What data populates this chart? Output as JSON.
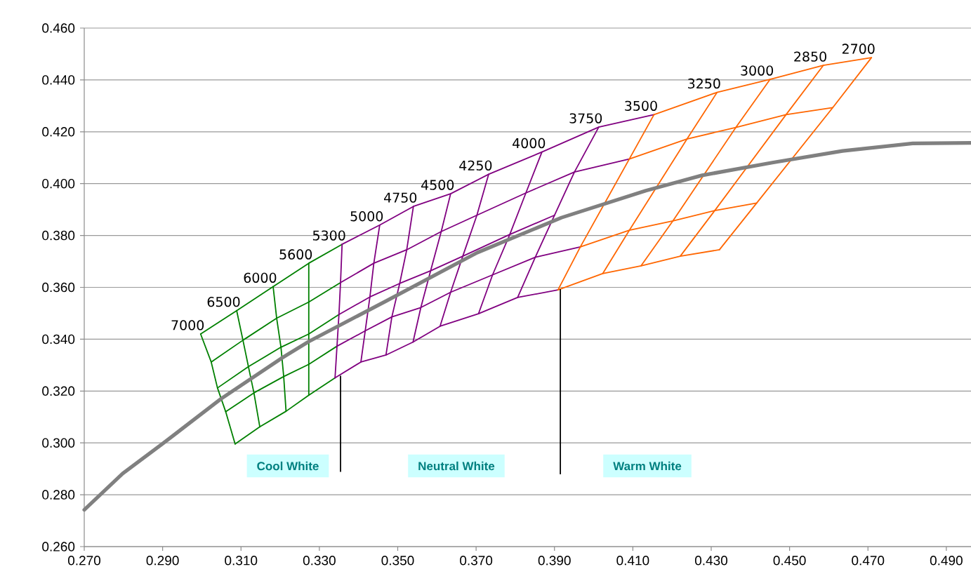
{
  "chart_data": {
    "type": "line",
    "xlim": [
      0.27,
      0.4963
    ],
    "ylim": [
      0.26,
      0.46
    ],
    "xticks": [
      {
        "value": 0.27,
        "label": "0.270"
      },
      {
        "value": 0.29,
        "label": "0.290"
      },
      {
        "value": 0.31,
        "label": "0.310"
      },
      {
        "value": 0.33,
        "label": "0.330"
      },
      {
        "value": 0.35,
        "label": "0.350"
      },
      {
        "value": 0.37,
        "label": "0.370"
      },
      {
        "value": 0.39,
        "label": "0.390"
      },
      {
        "value": 0.41,
        "label": "0.410"
      },
      {
        "value": 0.43,
        "label": "0.430"
      },
      {
        "value": 0.45,
        "label": "0.450"
      },
      {
        "value": 0.47,
        "label": "0.470"
      },
      {
        "value": 0.49,
        "label": "0.490"
      }
    ],
    "yticks": [
      {
        "value": 0.26,
        "label": "0.260"
      },
      {
        "value": 0.28,
        "label": "0.280"
      },
      {
        "value": 0.3,
        "label": "0.300"
      },
      {
        "value": 0.32,
        "label": "0.320"
      },
      {
        "value": 0.34,
        "label": "0.340"
      },
      {
        "value": 0.36,
        "label": "0.360"
      },
      {
        "value": 0.38,
        "label": "0.380"
      },
      {
        "value": 0.4,
        "label": "0.400"
      },
      {
        "value": 0.42,
        "label": "0.420"
      },
      {
        "value": 0.44,
        "label": "0.440"
      },
      {
        "value": 0.46,
        "label": "0.460"
      }
    ],
    "grid": "y",
    "series": [
      {
        "color": "#008000",
        "x": [
          0.2997,
          0.3024,
          0.304,
          0.3061,
          0.3085
        ],
        "values": [
          0.342,
          0.3312,
          0.3212,
          0.312,
          0.2996
        ]
      },
      {
        "color": "#008000",
        "x": [
          0.3089,
          0.3105,
          0.3119,
          0.3133,
          0.3148
        ],
        "values": [
          0.351,
          0.3396,
          0.3294,
          0.3193,
          0.3062
        ]
      },
      {
        "color": "#008000",
        "x": [
          0.3182,
          0.3191,
          0.3202,
          0.3209,
          0.3215
        ],
        "values": [
          0.3603,
          0.3481,
          0.3369,
          0.3256,
          0.3122
        ]
      },
      {
        "color": "#008000",
        "x": [
          0.3273,
          0.3273,
          0.3273,
          0.3273,
          0.3273
        ],
        "values": [
          0.3693,
          0.3543,
          0.342,
          0.3303,
          0.3184
        ]
      },
      {
        "color": "#008000",
        "x": [
          0.2997,
          0.3089,
          0.3182,
          0.3273,
          0.3358
        ],
        "values": [
          0.342,
          0.351,
          0.3603,
          0.3693,
          0.3766
        ]
      },
      {
        "color": "#008000",
        "x": [
          0.3024,
          0.3105,
          0.3191,
          0.3273,
          0.3354
        ],
        "values": [
          0.3312,
          0.3396,
          0.3481,
          0.3543,
          0.3618
        ]
      },
      {
        "color": "#008000",
        "x": [
          0.304,
          0.3119,
          0.3202,
          0.3273,
          0.335
        ],
        "values": [
          0.3212,
          0.3294,
          0.3369,
          0.342,
          0.3495
        ]
      },
      {
        "color": "#008000",
        "x": [
          0.3061,
          0.3133,
          0.3209,
          0.3273,
          0.3345
        ],
        "values": [
          0.312,
          0.3193,
          0.3256,
          0.3303,
          0.3373
        ]
      },
      {
        "color": "#008000",
        "x": [
          0.3085,
          0.3148,
          0.3215,
          0.3273,
          0.334
        ],
        "values": [
          0.2996,
          0.3062,
          0.3122,
          0.3184,
          0.3251
        ]
      },
      {
        "color": "#800080",
        "x": [
          0.3358,
          0.3354,
          0.335,
          0.3345,
          0.334
        ],
        "values": [
          0.3766,
          0.3618,
          0.3495,
          0.3373,
          0.3251
        ]
      },
      {
        "color": "#800080",
        "x": [
          0.3454,
          0.3439,
          0.3429,
          0.3417,
          0.3406
        ],
        "values": [
          0.384,
          0.3693,
          0.3563,
          0.3432,
          0.3312
        ]
      },
      {
        "color": "#800080",
        "x": [
          0.354,
          0.3523,
          0.3505,
          0.3485,
          0.347
        ],
        "values": [
          0.3912,
          0.3745,
          0.3615,
          0.3486,
          0.3339
        ]
      },
      {
        "color": "#800080",
        "x": [
          0.3635,
          0.3611,
          0.3584,
          0.3559,
          0.3539
        ],
        "values": [
          0.3961,
          0.3815,
          0.3664,
          0.3522,
          0.3389
        ]
      },
      {
        "color": "#800080",
        "x": [
          0.3732,
          0.3702,
          0.3666,
          0.3635,
          0.3608
        ],
        "values": [
          0.4036,
          0.3878,
          0.372,
          0.3581,
          0.345
        ]
      },
      {
        "color": "#800080",
        "x": [
          0.3868,
          0.3827,
          0.3786,
          0.3742,
          0.3706
        ],
        "values": [
          0.4122,
          0.3964,
          0.3804,
          0.3648,
          0.3498
        ]
      },
      {
        "color": "#800080",
        "x": [
          0.4013,
          0.3951,
          0.39,
          0.3851,
          0.3806
        ],
        "values": [
          0.4218,
          0.4045,
          0.3878,
          0.3716,
          0.3561
        ]
      },
      {
        "color": "#800080",
        "x": [
          0.3358,
          0.3454,
          0.354,
          0.3635,
          0.3732,
          0.3868,
          0.4013,
          0.4154
        ],
        "values": [
          0.3766,
          0.384,
          0.3912,
          0.3961,
          0.4036,
          0.4122,
          0.4218,
          0.4266
        ]
      },
      {
        "color": "#800080",
        "x": [
          0.3354,
          0.3439,
          0.3523,
          0.3611,
          0.3702,
          0.3827,
          0.3951,
          0.4091
        ],
        "values": [
          0.3618,
          0.3693,
          0.3745,
          0.3815,
          0.3878,
          0.3964,
          0.4045,
          0.4095
        ]
      },
      {
        "color": "#800080",
        "x": [
          0.335,
          0.3429,
          0.3505,
          0.3584,
          0.3666,
          0.3786,
          0.39
        ],
        "values": [
          0.3495,
          0.3563,
          0.3615,
          0.3664,
          0.372,
          0.3804,
          0.3878
        ]
      },
      {
        "color": "#800080",
        "x": [
          0.3345,
          0.3417,
          0.3485,
          0.3559,
          0.3635,
          0.3742,
          0.3851,
          0.3966
        ],
        "values": [
          0.3373,
          0.3432,
          0.3486,
          0.3522,
          0.3581,
          0.3648,
          0.3716,
          0.3756
        ]
      },
      {
        "color": "#800080",
        "x": [
          0.334,
          0.3406,
          0.347,
          0.3539,
          0.3608,
          0.3706,
          0.3806,
          0.3909
        ],
        "values": [
          0.3251,
          0.3312,
          0.3339,
          0.3389,
          0.345,
          0.3498,
          0.3561,
          0.359
        ]
      },
      {
        "color": "#ff6600",
        "x": [
          0.4154,
          0.4091,
          0.3966,
          0.3909
        ],
        "values": [
          0.4266,
          0.4095,
          0.3756,
          0.359
        ]
      },
      {
        "color": "#ff6600",
        "x": [
          0.4315,
          0.4238,
          0.4091,
          0.4023
        ],
        "values": [
          0.4352,
          0.4172,
          0.382,
          0.3653
        ]
      },
      {
        "color": "#ff6600",
        "x": [
          0.445,
          0.4363,
          0.4202,
          0.4121
        ],
        "values": [
          0.4402,
          0.4217,
          0.3856,
          0.3683
        ]
      },
      {
        "color": "#ff6600",
        "x": [
          0.4586,
          0.4491,
          0.4309,
          0.4221
        ],
        "values": [
          0.4456,
          0.4266,
          0.3896,
          0.372
        ]
      },
      {
        "color": "#ff6600",
        "x": [
          0.4709,
          0.461,
          0.4416,
          0.4321
        ],
        "values": [
          0.4486,
          0.4293,
          0.3925,
          0.3745
        ]
      },
      {
        "color": "#ff6600",
        "x": [
          0.4154,
          0.4315,
          0.445,
          0.4586,
          0.4709
        ],
        "values": [
          0.4266,
          0.4352,
          0.4402,
          0.4456,
          0.4486
        ]
      },
      {
        "color": "#ff6600",
        "x": [
          0.4091,
          0.4238,
          0.4363,
          0.4491,
          0.461
        ],
        "values": [
          0.4095,
          0.4172,
          0.4217,
          0.4266,
          0.4293
        ]
      },
      {
        "color": "#ff6600",
        "x": [
          0.3966,
          0.4091,
          0.4202,
          0.4309,
          0.4416
        ],
        "values": [
          0.3756,
          0.382,
          0.3856,
          0.3896,
          0.3925
        ]
      },
      {
        "color": "#ff6600",
        "x": [
          0.3909,
          0.4023,
          0.4121,
          0.4221,
          0.4321
        ],
        "values": [
          0.359,
          0.3653,
          0.3683,
          0.372,
          0.3745
        ]
      },
      {
        "color": "#000000",
        "x": [
          0.3354,
          0.3354
        ],
        "values": [
          0.3257,
          0.289
        ]
      },
      {
        "color": "#000000",
        "x": [
          0.3915,
          0.3915
        ],
        "values": [
          0.3591,
          0.2881
        ]
      },
      {
        "color": "#808080",
        "x": [
          0.27,
          0.2798,
          0.2901,
          0.3049,
          0.3205,
          0.3273,
          0.347,
          0.3703,
          0.3918,
          0.4133,
          0.4277,
          0.4456,
          0.4635,
          0.4814,
          0.4963
        ],
        "values": [
          0.2742,
          0.2882,
          0.2998,
          0.317,
          0.3328,
          0.3391,
          0.3547,
          0.3734,
          0.3869,
          0.3973,
          0.4032,
          0.4081,
          0.4126,
          0.4155,
          0.4157
        ]
      }
    ],
    "annotations": [
      "Cool White",
      "Neutral White",
      "Warm White",
      {
        "text": "7000",
        "x": 0.2997,
        "y": 0.342
      },
      {
        "text": "6500",
        "x": 0.3089,
        "y": 0.351
      },
      {
        "text": "6000",
        "x": 0.3182,
        "y": 0.3603
      },
      {
        "text": "5600",
        "x": 0.3273,
        "y": 0.3693
      },
      {
        "text": "5300",
        "x": 0.3358,
        "y": 0.3766
      },
      {
        "text": "5000",
        "x": 0.3454,
        "y": 0.384
      },
      {
        "text": "4750",
        "x": 0.354,
        "y": 0.3912
      },
      {
        "text": "4500",
        "x": 0.3635,
        "y": 0.3961
      },
      {
        "text": "4250",
        "x": 0.3732,
        "y": 0.4036
      },
      {
        "text": "4000",
        "x": 0.3868,
        "y": 0.4122
      },
      {
        "text": "3750",
        "x": 0.4013,
        "y": 0.4218
      },
      {
        "text": "3500",
        "x": 0.4154,
        "y": 0.4266
      },
      {
        "text": "3250",
        "x": 0.4315,
        "y": 0.4352
      },
      {
        "text": "3000",
        "x": 0.445,
        "y": 0.4402
      },
      {
        "text": "2850",
        "x": 0.4586,
        "y": 0.4456
      },
      {
        "text": "2700",
        "x": 0.4709,
        "y": 0.4486
      }
    ]
  }
}
